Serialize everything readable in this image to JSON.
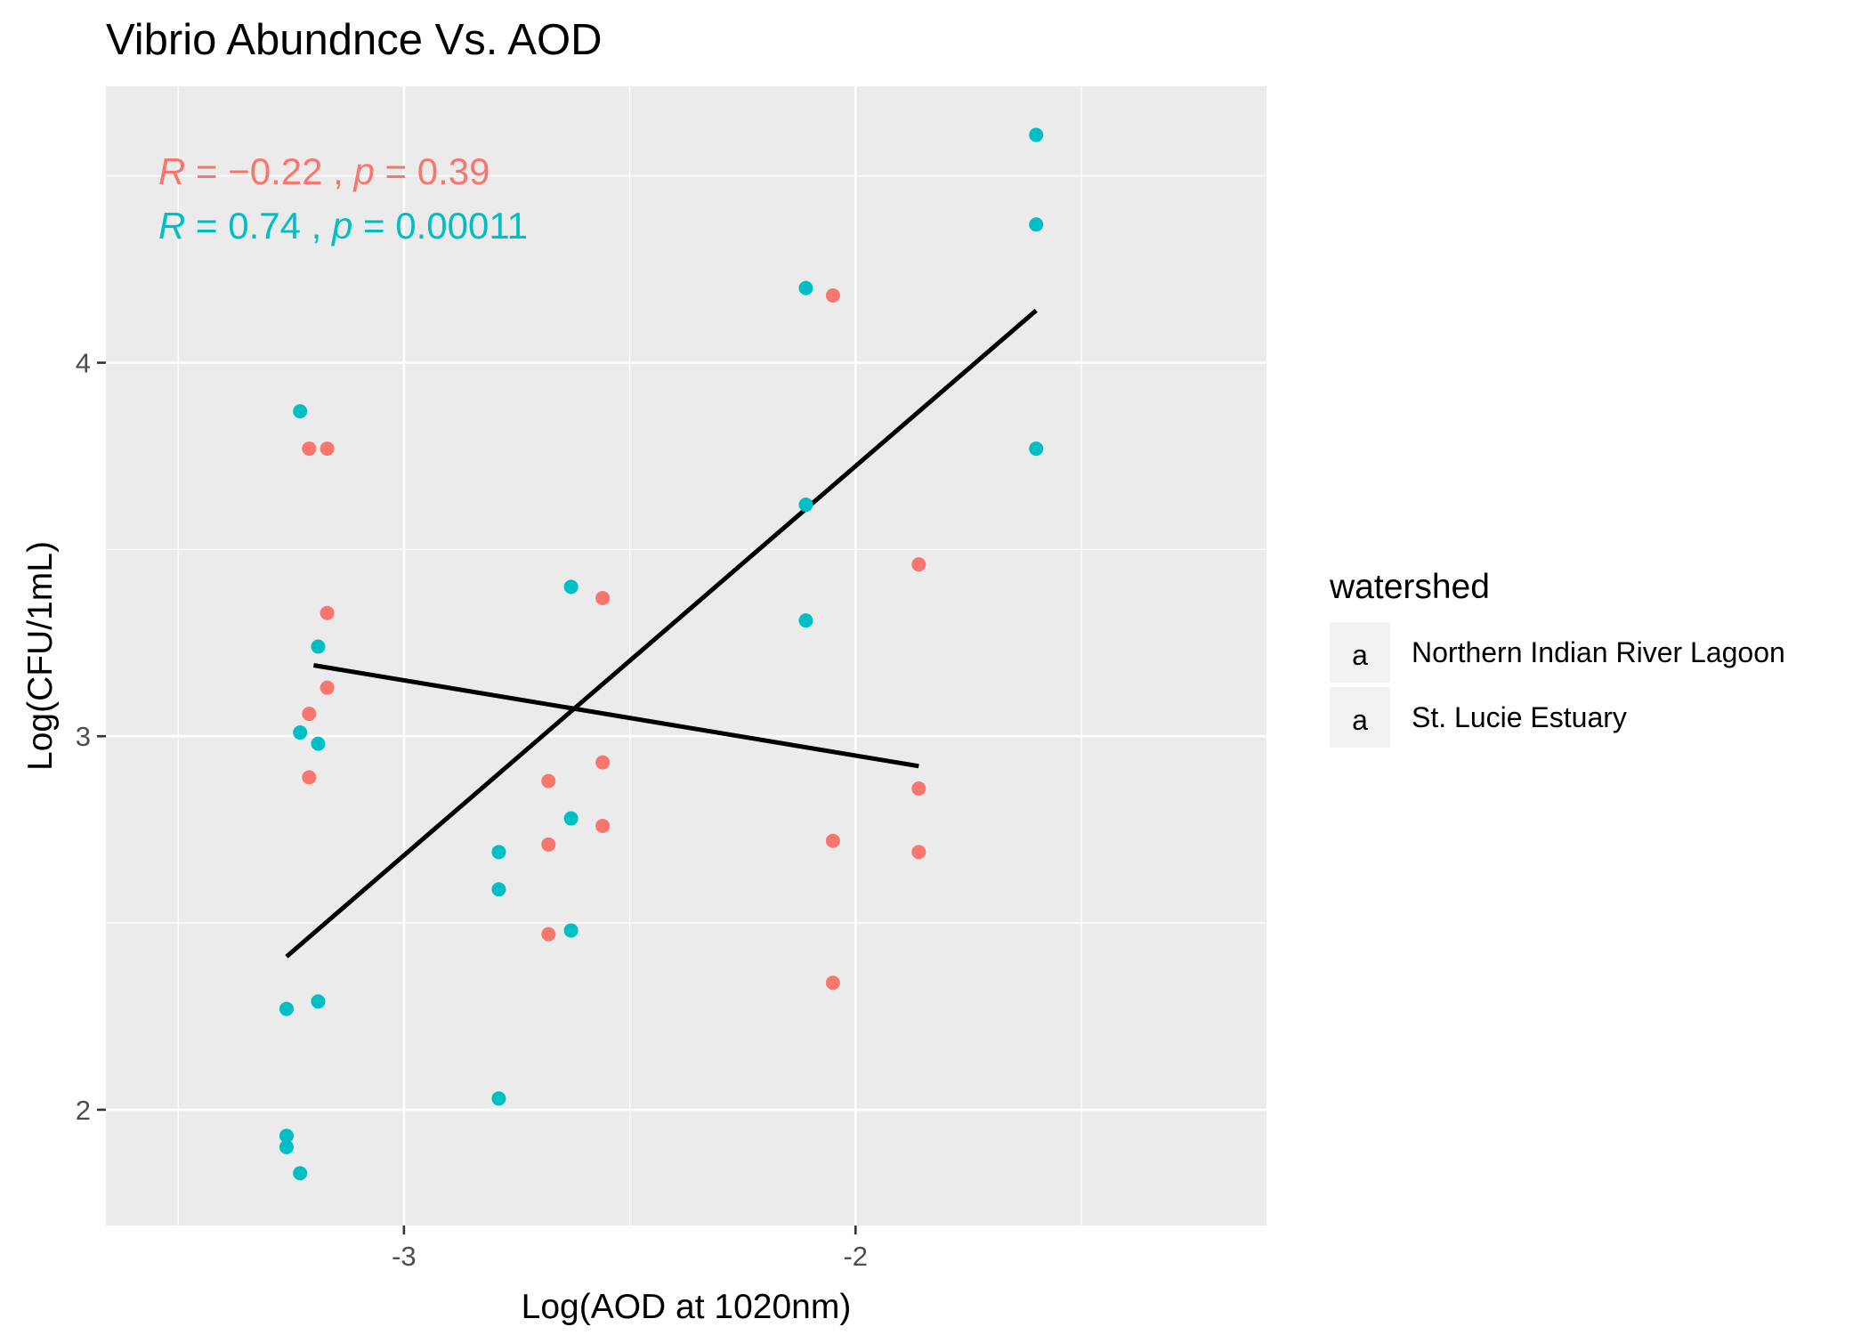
{
  "chart_data": {
    "type": "scatter",
    "title": "Vibrio Abundnce Vs. AOD",
    "xlabel": "Log(AOD at 1020nm)",
    "ylabel": "Log(CFU/1mL)",
    "xlim": [
      -3.66,
      -1.09
    ],
    "ylim": [
      1.69,
      4.74
    ],
    "x_ticks": [
      {
        "value": -3,
        "label": "-3"
      },
      {
        "value": -2,
        "label": "-2"
      }
    ],
    "x_minor": [
      -3.5,
      -2.5,
      -1.5
    ],
    "y_ticks": [
      {
        "value": 2,
        "label": "2"
      },
      {
        "value": 3,
        "label": "3"
      },
      {
        "value": 4,
        "label": "4"
      }
    ],
    "y_minor": [
      2.5,
      3.5,
      4.5
    ],
    "grid": true,
    "legend": {
      "title": "watershed",
      "position": "right",
      "glyph": "a"
    },
    "series": [
      {
        "name": "Northern Indian River Lagoon",
        "color": "#F8766D",
        "fit": {
          "x": [
            -3.2,
            -1.86
          ],
          "y": [
            3.19,
            2.92
          ]
        },
        "annotation": {
          "R": "R",
          "eq": " = ",
          "minus": "−",
          "rval": "0.22 , ",
          "p": "p",
          "eq2": " = ",
          "pval": "0.39"
        },
        "points": [
          {
            "x": -3.21,
            "y": 3.77
          },
          {
            "x": -3.17,
            "y": 3.77
          },
          {
            "x": -3.17,
            "y": 3.33
          },
          {
            "x": -3.17,
            "y": 3.13
          },
          {
            "x": -3.21,
            "y": 3.06
          },
          {
            "x": -3.21,
            "y": 2.89
          },
          {
            "x": -2.68,
            "y": 2.88
          },
          {
            "x": -2.68,
            "y": 2.71
          },
          {
            "x": -2.68,
            "y": 2.47
          },
          {
            "x": -2.56,
            "y": 3.37
          },
          {
            "x": -2.56,
            "y": 2.93
          },
          {
            "x": -2.56,
            "y": 2.76
          },
          {
            "x": -2.05,
            "y": 4.18
          },
          {
            "x": -2.05,
            "y": 2.72
          },
          {
            "x": -2.05,
            "y": 2.34
          },
          {
            "x": -1.86,
            "y": 3.46
          },
          {
            "x": -1.86,
            "y": 2.86
          },
          {
            "x": -1.86,
            "y": 2.69
          }
        ]
      },
      {
        "name": "St. Lucie Estuary",
        "color": "#00BFC4",
        "fit": {
          "x": [
            -3.26,
            -1.6
          ],
          "y": [
            2.41,
            4.14
          ]
        },
        "annotation": {
          "R": "R",
          "eq": " = ",
          "minus": "",
          "rval": "0.74 , ",
          "p": "p",
          "eq2": " = ",
          "pval": "0.00011"
        },
        "points": [
          {
            "x": -3.23,
            "y": 3.87
          },
          {
            "x": -3.19,
            "y": 3.24
          },
          {
            "x": -3.23,
            "y": 3.01
          },
          {
            "x": -3.19,
            "y": 2.98
          },
          {
            "x": -3.26,
            "y": 2.27
          },
          {
            "x": -3.19,
            "y": 2.29
          },
          {
            "x": -3.26,
            "y": 1.93
          },
          {
            "x": -3.26,
            "y": 1.9
          },
          {
            "x": -3.23,
            "y": 1.83
          },
          {
            "x": -2.79,
            "y": 2.69
          },
          {
            "x": -2.79,
            "y": 2.59
          },
          {
            "x": -2.79,
            "y": 2.03
          },
          {
            "x": -2.63,
            "y": 3.4
          },
          {
            "x": -2.63,
            "y": 2.78
          },
          {
            "x": -2.63,
            "y": 2.48
          },
          {
            "x": -2.11,
            "y": 4.2
          },
          {
            "x": -2.11,
            "y": 3.62
          },
          {
            "x": -2.11,
            "y": 3.31
          },
          {
            "x": -1.6,
            "y": 4.61
          },
          {
            "x": -1.6,
            "y": 4.37
          },
          {
            "x": -1.6,
            "y": 3.77
          }
        ]
      }
    ]
  }
}
